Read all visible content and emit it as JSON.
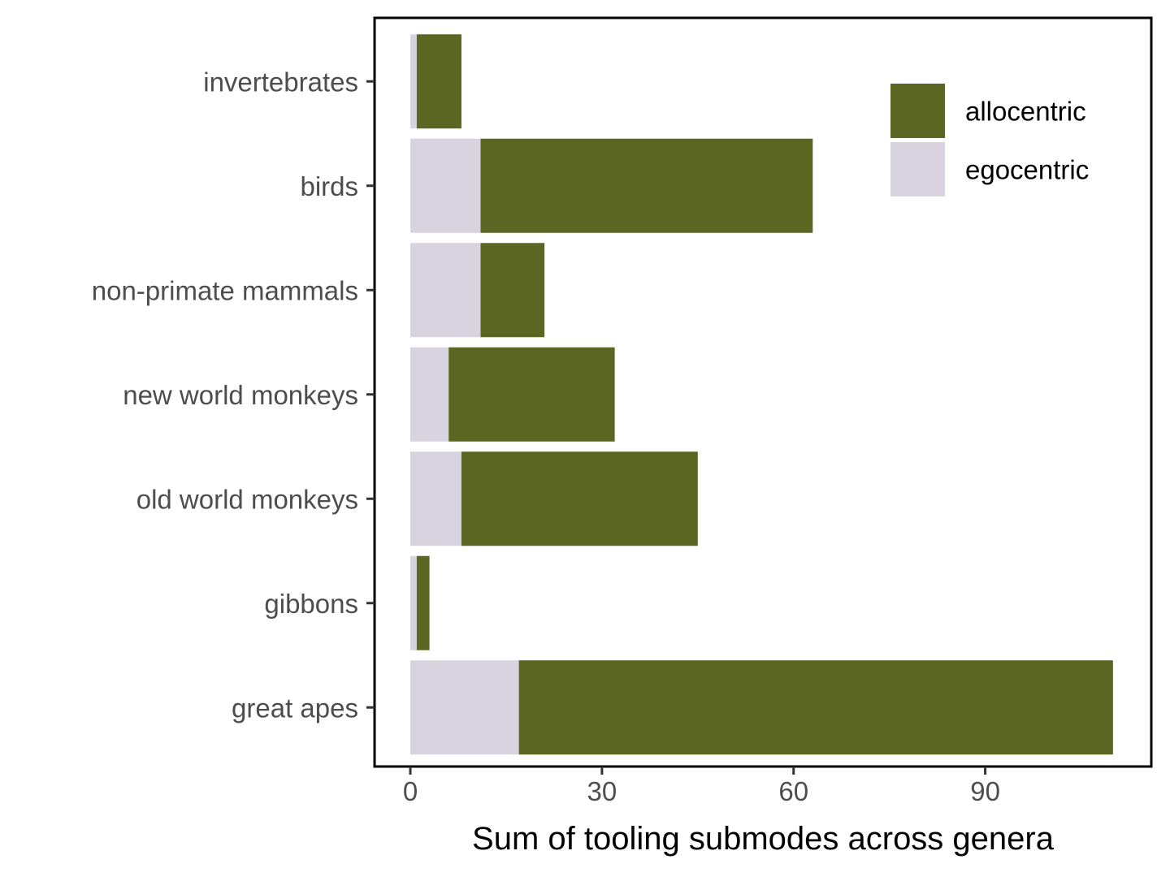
{
  "chart_data": {
    "type": "bar",
    "orientation": "horizontal",
    "stacked": true,
    "title": "",
    "xlabel": "Sum of tooling submodes across genera",
    "ylabel": "",
    "xlim": [
      -5.6,
      116
    ],
    "xticks": [
      0,
      30,
      60,
      90
    ],
    "categories": [
      "invertebrates",
      "birds",
      "non-primate mammals",
      "new world monkeys",
      "old world monkeys",
      "gibbons",
      "great apes"
    ],
    "series": [
      {
        "name": "egocentric",
        "color": "#d9d3e0",
        "values": [
          1,
          11,
          11,
          6,
          8,
          1,
          17
        ]
      },
      {
        "name": "allocentric",
        "color": "#5a6621",
        "values": [
          7,
          52,
          10,
          26,
          37,
          2,
          93
        ]
      }
    ],
    "legend": {
      "position": "top-right",
      "entries": [
        {
          "label": "allocentric",
          "color": "#5a6621"
        },
        {
          "label": "egocentric",
          "color": "#d9d3e0"
        }
      ]
    },
    "grid": false
  }
}
